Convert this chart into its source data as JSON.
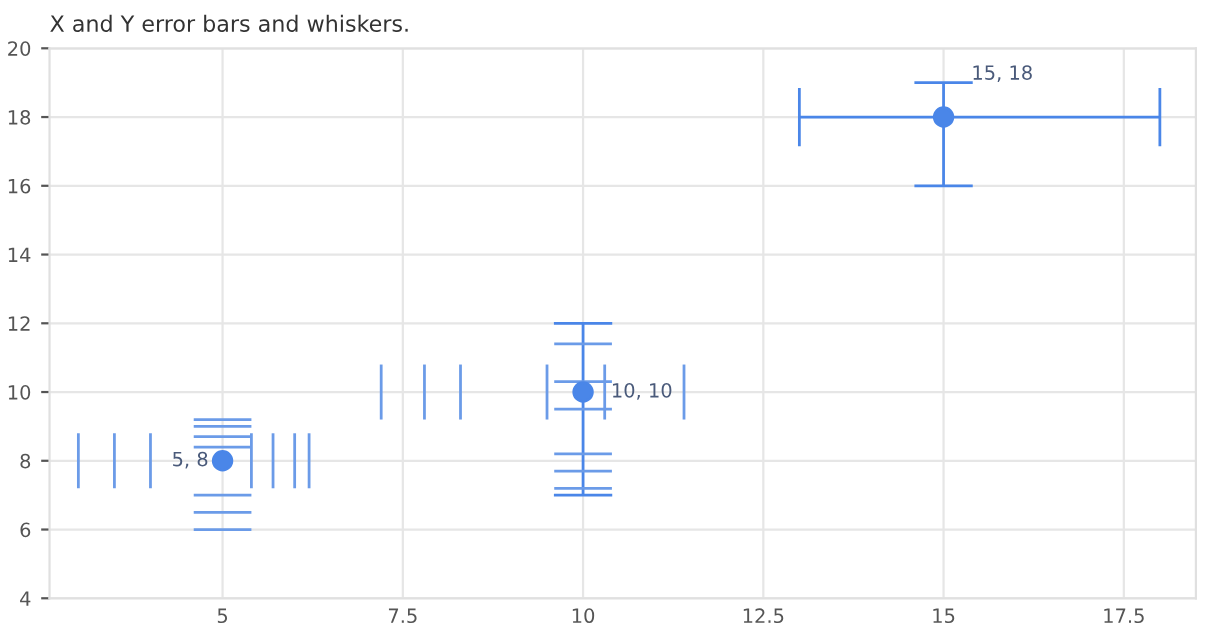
{
  "chart_data": {
    "type": "scatter",
    "title": "X and Y error bars and whiskers.",
    "x": [
      5,
      10,
      15
    ],
    "series": [
      {
        "color": "#4a86e8",
        "values": [
          8,
          10,
          18
        ],
        "errors": [
          null,
          [
            7,
            12
          ],
          [
            16,
            19
          ]
        ],
        "xerrors": [
          null,
          null,
          [
            13,
            18
          ]
        ],
        "marker": "circle",
        "value_labels": [
          "5, 8",
          "10, 10",
          "15, 18"
        ]
      },
      {
        "type": "line",
        "color": "#6b9be8",
        "x": [
          4.6,
          5.4
        ],
        "values": [
          9.2,
          9.2
        ]
      },
      {
        "type": "line",
        "color": "#6b9be8",
        "x": [
          4.6,
          5.4
        ],
        "values": [
          9.0,
          9.0
        ]
      },
      {
        "type": "line",
        "color": "#6b9be8",
        "x": [
          4.6,
          5.4
        ],
        "values": [
          8.7,
          8.7
        ]
      },
      {
        "type": "line",
        "color": "#6b9be8",
        "x": [
          4.6,
          5.4
        ],
        "values": [
          8.4,
          8.4
        ]
      },
      {
        "type": "line",
        "color": "#6b9be8",
        "x": [
          4.6,
          5.4
        ],
        "values": [
          7.0,
          7.0
        ]
      },
      {
        "type": "line",
        "color": "#6b9be8",
        "x": [
          4.6,
          5.4
        ],
        "values": [
          6.5,
          6.5
        ]
      },
      {
        "type": "line",
        "color": "#6b9be8",
        "x": [
          4.6,
          5.4
        ],
        "values": [
          6.0,
          6.0
        ]
      },
      {
        "type": "line",
        "color": "#6b9be8",
        "x": [
          3.0,
          3.0
        ],
        "values": [
          7.2,
          8.8
        ]
      },
      {
        "type": "line",
        "color": "#6b9be8",
        "x": [
          3.5,
          3.5
        ],
        "values": [
          7.2,
          8.8
        ]
      },
      {
        "type": "line",
        "color": "#6b9be8",
        "x": [
          4.0,
          4.0
        ],
        "values": [
          7.2,
          8.8
        ]
      },
      {
        "type": "line",
        "color": "#6b9be8",
        "x": [
          5.4,
          5.4
        ],
        "values": [
          7.2,
          8.8
        ]
      },
      {
        "type": "line",
        "color": "#6b9be8",
        "x": [
          5.7,
          5.7
        ],
        "values": [
          7.2,
          8.8
        ]
      },
      {
        "type": "line",
        "color": "#6b9be8",
        "x": [
          6.0,
          6.0
        ],
        "values": [
          7.2,
          8.8
        ]
      },
      {
        "type": "line",
        "color": "#6b9be8",
        "x": [
          6.2,
          6.2
        ],
        "values": [
          7.2,
          8.8
        ]
      },
      {
        "type": "line",
        "color": "#6b9be8",
        "x": [
          9.6,
          10.4
        ],
        "values": [
          11.4,
          11.4
        ]
      },
      {
        "type": "line",
        "color": "#6b9be8",
        "x": [
          9.6,
          10.4
        ],
        "values": [
          10.3,
          10.3
        ]
      },
      {
        "type": "line",
        "color": "#6b9be8",
        "x": [
          9.6,
          10.4
        ],
        "values": [
          9.5,
          9.5
        ]
      },
      {
        "type": "line",
        "color": "#6b9be8",
        "x": [
          9.6,
          10.4
        ],
        "values": [
          8.2,
          8.2
        ]
      },
      {
        "type": "line",
        "color": "#6b9be8",
        "x": [
          9.6,
          10.4
        ],
        "values": [
          7.7,
          7.7
        ]
      },
      {
        "type": "line",
        "color": "#6b9be8",
        "x": [
          9.6,
          10.4
        ],
        "values": [
          7.2,
          7.2
        ]
      },
      {
        "type": "line",
        "color": "#6b9be8",
        "x": [
          7.2,
          7.2
        ],
        "values": [
          9.2,
          10.8
        ]
      },
      {
        "type": "line",
        "color": "#6b9be8",
        "x": [
          7.8,
          7.8
        ],
        "values": [
          9.2,
          10.8
        ]
      },
      {
        "type": "line",
        "color": "#6b9be8",
        "x": [
          8.3,
          8.3
        ],
        "values": [
          9.2,
          10.8
        ]
      },
      {
        "type": "line",
        "color": "#6b9be8",
        "x": [
          9.5,
          9.5
        ],
        "values": [
          9.2,
          10.8
        ]
      },
      {
        "type": "line",
        "color": "#6b9be8",
        "x": [
          10.3,
          10.3
        ],
        "values": [
          9.2,
          10.8
        ]
      },
      {
        "type": "line",
        "color": "#6b9be8",
        "x": [
          11.4,
          11.4
        ],
        "values": [
          9.2,
          10.8
        ]
      }
    ],
    "xlim": [
      2.6,
      18.5
    ],
    "xticks": [
      5,
      7.5,
      10,
      12.5,
      15,
      17.5
    ],
    "ylim": [
      4,
      20
    ],
    "yticks": [
      4,
      6,
      8,
      10,
      12,
      14,
      16,
      18,
      20
    ],
    "grid": true
  }
}
